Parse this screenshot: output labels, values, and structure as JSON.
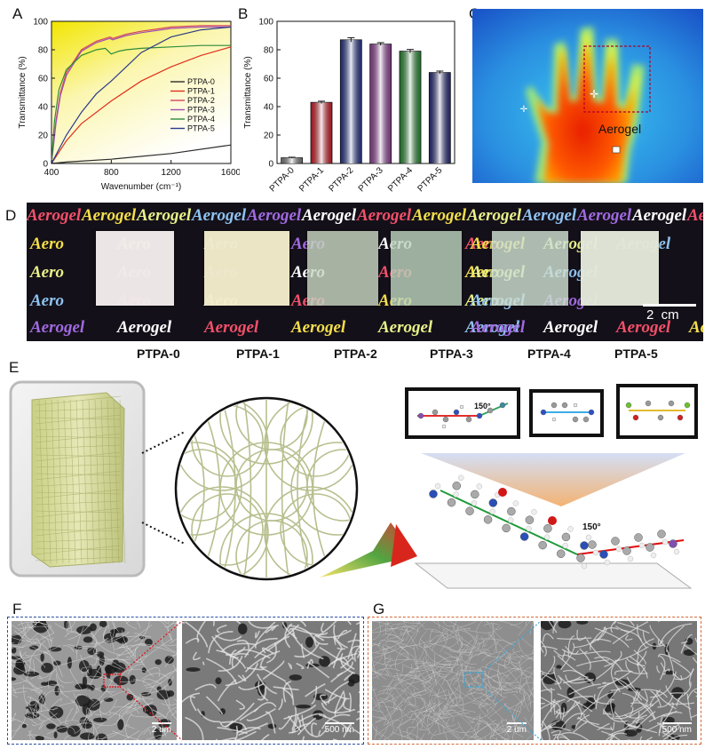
{
  "panels": {
    "a": "A",
    "b": "B",
    "c": "C",
    "d": "D",
    "e": "E",
    "f": "F",
    "g": "G"
  },
  "chart_data": [
    {
      "type": "line",
      "panel": "A",
      "xlabel": "Wavenumber (cm⁻¹)",
      "ylabel": "Transmittance (%)",
      "xlim": [
        400,
        1600
      ],
      "ylim": [
        0,
        100
      ],
      "xticks": [
        400,
        800,
        1200,
        1600
      ],
      "yticks": [
        0,
        20,
        40,
        60,
        80,
        100
      ],
      "legend_position": "right",
      "grid": false,
      "series": [
        {
          "name": "PTPA-0",
          "color": "#2b2b2b",
          "x": [
            400,
            500,
            800,
            1200,
            1600
          ],
          "y": [
            0,
            1,
            3,
            7,
            13
          ]
        },
        {
          "name": "PTPA-1",
          "color": "#e0301e",
          "x": [
            400,
            450,
            500,
            600,
            800,
            1000,
            1200,
            1400,
            1600
          ],
          "y": [
            0,
            8,
            16,
            28,
            44,
            58,
            68,
            76,
            82
          ]
        },
        {
          "name": "PTPA-2",
          "color": "#d4455e",
          "x": [
            400,
            430,
            460,
            500,
            600,
            700,
            790,
            810,
            900,
            1000,
            1200,
            1400,
            1600
          ],
          "y": [
            0,
            30,
            50,
            64,
            80,
            86,
            89,
            88,
            91,
            93,
            96,
            97,
            97
          ]
        },
        {
          "name": "PTPA-3",
          "color": "#a14fb3",
          "x": [
            400,
            430,
            460,
            500,
            600,
            700,
            790,
            810,
            900,
            1000,
            1200,
            1400,
            1600
          ],
          "y": [
            0,
            28,
            48,
            62,
            79,
            85,
            88,
            87,
            90,
            92,
            95,
            96,
            96
          ]
        },
        {
          "name": "PTPA-4",
          "color": "#2e8b3a",
          "x": [
            400,
            420,
            450,
            500,
            600,
            700,
            760,
            800,
            850,
            900,
            1000,
            1200,
            1400,
            1600
          ],
          "y": [
            0,
            30,
            52,
            66,
            76,
            80,
            81,
            77,
            79,
            80,
            81,
            82,
            83,
            83
          ]
        },
        {
          "name": "PTPA-5",
          "color": "#2a3a8c",
          "x": [
            400,
            450,
            500,
            600,
            700,
            800,
            900,
            1000,
            1200,
            1400,
            1600
          ],
          "y": [
            0,
            10,
            20,
            36,
            49,
            58,
            68,
            78,
            89,
            94,
            96
          ]
        }
      ]
    },
    {
      "type": "bar",
      "panel": "B",
      "ylabel": "Transmittance (%)",
      "ylim": [
        0,
        100
      ],
      "yticks": [
        0,
        20,
        40,
        60,
        80,
        100
      ],
      "categories": [
        "PTPA-0",
        "PTPA-1",
        "PTPA-2",
        "PTPA-3",
        "PTPA-4",
        "PTPA-5"
      ],
      "values": [
        4,
        43,
        87,
        84,
        79,
        64
      ],
      "errors": [
        0.4,
        0.8,
        1.5,
        1.0,
        1.2,
        1.0
      ],
      "colors": [
        "#8a8a8a",
        "#e2202c",
        "#2b3c9a",
        "#a04aa8",
        "#2f9a3c",
        "#2b2f86"
      ]
    }
  ],
  "thermal": {
    "label": "Aerogel"
  },
  "photo": {
    "rows": [
      [
        "Aerogel",
        "Aerogel",
        "Aerogel",
        "Aerogel",
        "Aerogel",
        "Aerogel",
        "Aerogel",
        "Aerogel",
        "Aerogel",
        "Aerogel",
        "Aerogel",
        "Aerogel",
        "Aerogel"
      ],
      [
        "Aero",
        "Aero",
        "Aero",
        "Aero",
        "Aero",
        "Aero",
        "Aerogel",
        "Aerogel",
        "Aerogel"
      ],
      [
        "Aero",
        "Aero",
        "Aero",
        "Aero",
        "Aero",
        "Aero",
        "Aerogel",
        "Aerogel"
      ],
      [
        "Aero",
        "Aero",
        "Aero",
        "Aero",
        "Aero",
        "Aero",
        "Aerogel",
        "Aerogel"
      ],
      [
        "Aerogel",
        "Aerogel",
        "Aerogel",
        "Aerogel",
        "Aerogel",
        "Aerogel",
        "Aerogel",
        "Aerogel",
        "Aerogel",
        "Aerogel",
        "Aerogel",
        "Aerogel"
      ]
    ],
    "scale": "2  cm",
    "samples": [
      "PTPA-0",
      "PTPA-1",
      "PTPA-2",
      "PTPA-3",
      "PTPA-4",
      "PTPA-5"
    ],
    "sample_colors": [
      "#f3ecec",
      "#f2eccb",
      "#c8d6c2",
      "#bcd3bd",
      "#cfe0d2",
      "#e4e8da"
    ]
  },
  "molecule": {
    "angle_top": "150°",
    "angle_bottom": "150°"
  },
  "sem": {
    "f_left_scale": "2 um",
    "f_right_scale": "500 nm",
    "g_left_scale": "2 um",
    "g_right_scale": "500 nm"
  }
}
